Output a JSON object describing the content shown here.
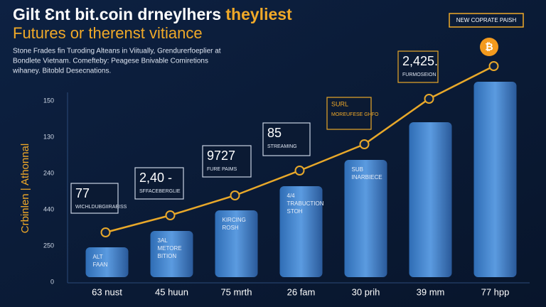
{
  "chart_data": {
    "type": "bar",
    "title": "Gilt Ɛnt bit.coin drneylhers",
    "title_highlight": "theyliest",
    "title_line2": "Futures or therenst vitiance",
    "subtitle": [
      "Stone Frades fin Turoding Alteans in Viitually, Grendurerfoeplier at",
      "Bondlete Vietnam. Comefteby: Peagese Bnivable Comiretions",
      "wihaney. Bitobld Desecnations."
    ],
    "y_axis_title": "Crbinlen | Athonnal",
    "y_axis_labels": [
      "150",
      "130",
      "240",
      "440",
      "250",
      "0"
    ],
    "categories": [
      "63 nust",
      "45 huun",
      "75 mrth",
      "26 fam",
      "30 prih",
      "39 mm",
      "77 hpp"
    ],
    "values": [
      42,
      65,
      94,
      128,
      165,
      218,
      275
    ],
    "line_values": [
      63,
      87,
      115,
      150,
      187,
      251,
      297
    ],
    "ylim": [
      0,
      300
    ],
    "color": "#4d8fd6",
    "line_color": "#e8a82a",
    "bar_labels": [
      [
        "ALT",
        "FAAN"
      ],
      [
        "3AL",
        "METORE",
        "BITION"
      ],
      [
        "KIRCING",
        "ROSH"
      ],
      [
        "4/4",
        "TRABUCTION",
        "STOH"
      ],
      [
        "SUB",
        "INARBIECE"
      ],
      [],
      []
    ],
    "callouts": [
      {
        "big": "77",
        "small": "WICHLDUBGIIRAEISS"
      },
      {
        "big": "2,40 -",
        "small": "SFFACEBERGLIE"
      },
      {
        "big": "9727",
        "small": "FURE PAIMS"
      },
      {
        "big": "85",
        "small": "STREAMING"
      },
      {
        "big": "SURL",
        "small": "MOREUFESE GHFO"
      },
      {
        "big": "2,425.",
        "small": "FURMOSEION"
      }
    ],
    "badge": "NEW COPRATE PAISH",
    "icon": "₿"
  }
}
